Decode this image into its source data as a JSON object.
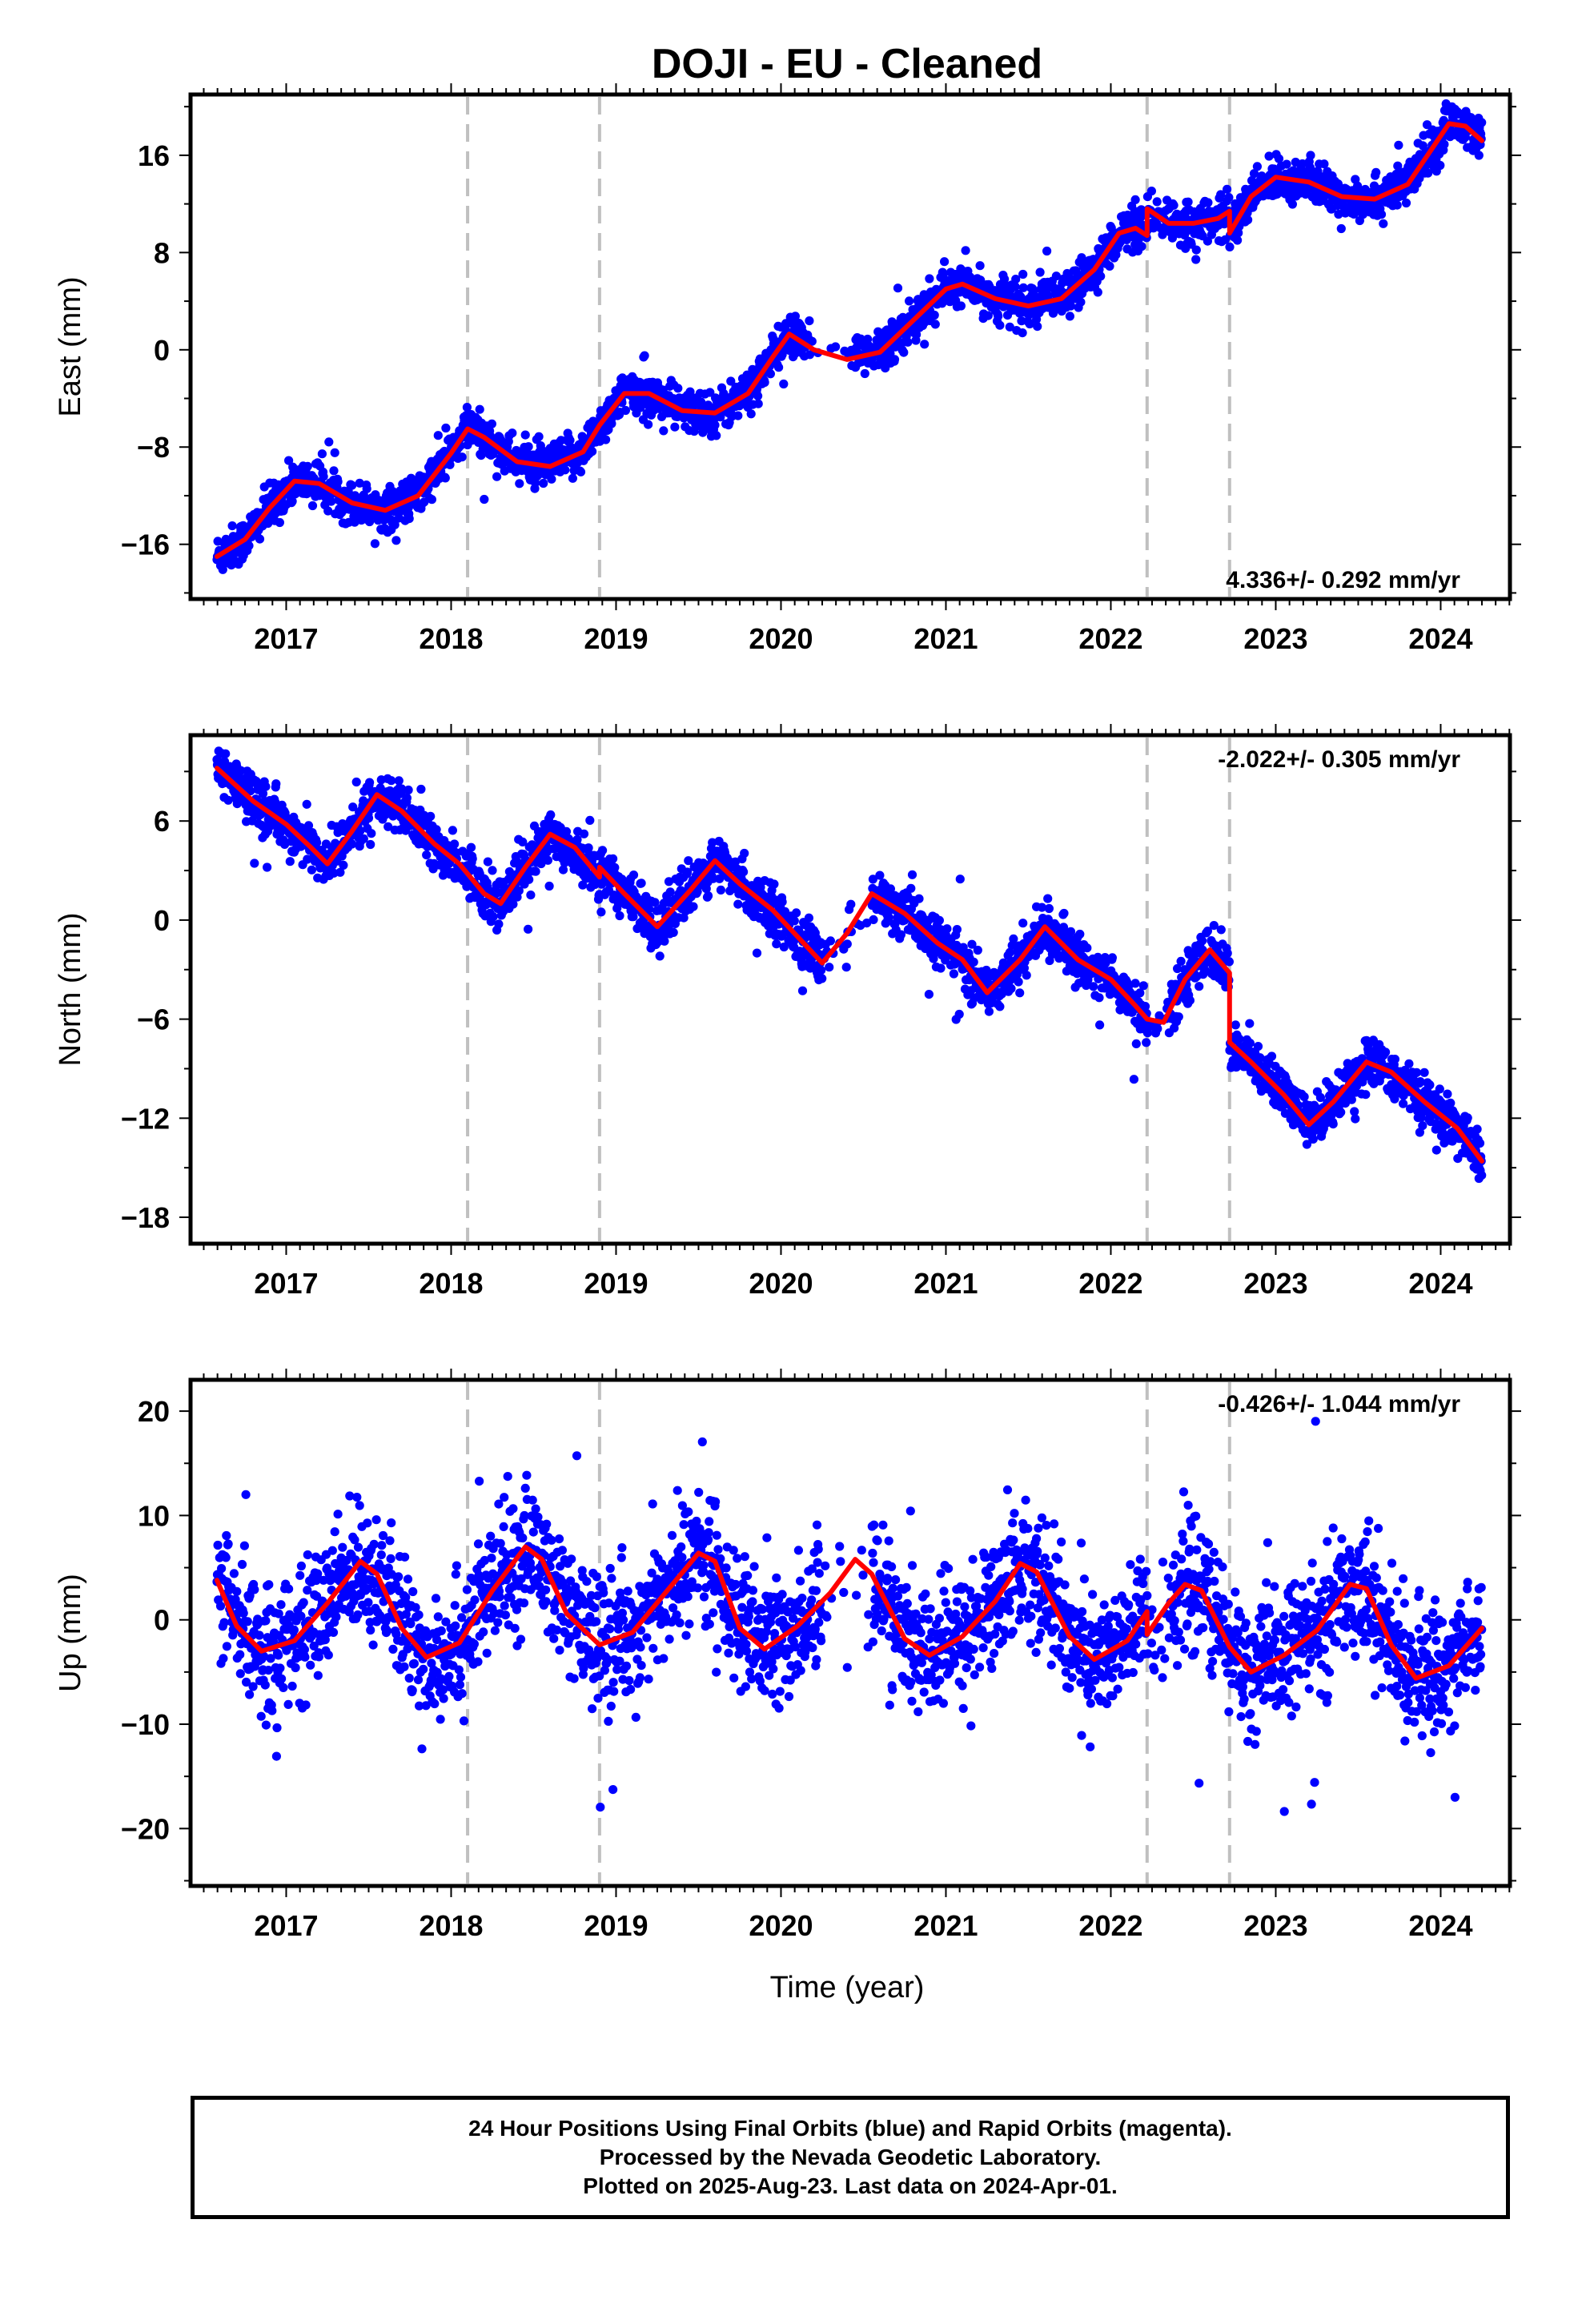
{
  "title": "DOJI  - EU - Cleaned",
  "x_axis_label": "Time (year)",
  "footer": {
    "line1": "24 Hour Positions Using Final Orbits (blue) and Rapid Orbits (magenta).",
    "line2": "Processed by the Nevada Geodetic Laboratory.",
    "line3": "Plotted on 2025-Aug-23. Last data on 2024-Apr-01."
  },
  "colors": {
    "final_orbits": "#0000ff",
    "rapid_orbits": "#ff00ff",
    "model": "#ff0000",
    "event_lines": "#c0c0c0"
  },
  "chart_data": [
    {
      "type": "scatter",
      "name": "east",
      "ylabel": "East (mm)",
      "xlabel": "",
      "xlim": [
        2016.42,
        2024.42
      ],
      "ylim": [
        -20.5,
        21
      ],
      "yticks": [
        -16,
        -8,
        0,
        8,
        16
      ],
      "xticks": [
        2017,
        2018,
        2019,
        2020,
        2021,
        2022,
        2023,
        2024
      ],
      "grid": false,
      "annotation": "4.336+/- 0.292 mm/yr",
      "annotation_position": "bottom-right",
      "event_lines": [
        2018.1,
        2018.9,
        2022.22,
        2022.72
      ],
      "rate_mm_per_yr": 4.336,
      "data_span": [
        2016.58,
        2024.25
      ],
      "model_points": [
        [
          2016.58,
          -17.0
        ],
        [
          2016.75,
          -15.6
        ],
        [
          2016.9,
          -13.0
        ],
        [
          2017.05,
          -10.8
        ],
        [
          2017.2,
          -11.0
        ],
        [
          2017.4,
          -12.6
        ],
        [
          2017.6,
          -13.2
        ],
        [
          2017.8,
          -12.0
        ],
        [
          2018.0,
          -8.5
        ],
        [
          2018.1,
          -6.5
        ],
        [
          2018.2,
          -7.2
        ],
        [
          2018.4,
          -9.2
        ],
        [
          2018.6,
          -9.6
        ],
        [
          2018.8,
          -8.4
        ],
        [
          2018.9,
          -6.2
        ],
        [
          2019.05,
          -3.6
        ],
        [
          2019.2,
          -3.6
        ],
        [
          2019.4,
          -5.0
        ],
        [
          2019.6,
          -5.2
        ],
        [
          2019.8,
          -3.6
        ],
        [
          2019.95,
          -0.6
        ],
        [
          2020.05,
          1.3
        ],
        [
          2020.2,
          0.0
        ],
        [
          2020.4,
          -0.8
        ],
        [
          2020.6,
          -0.2
        ],
        [
          2020.8,
          2.4
        ],
        [
          2021.0,
          5.0
        ],
        [
          2021.1,
          5.4
        ],
        [
          2021.3,
          4.2
        ],
        [
          2021.5,
          3.6
        ],
        [
          2021.7,
          4.2
        ],
        [
          2021.9,
          6.6
        ],
        [
          2022.05,
          9.6
        ],
        [
          2022.15,
          10.0
        ],
        [
          2022.22,
          9.4
        ],
        [
          2022.22,
          11.6
        ],
        [
          2022.35,
          10.4
        ],
        [
          2022.5,
          10.4
        ],
        [
          2022.65,
          10.8
        ],
        [
          2022.72,
          11.4
        ],
        [
          2022.72,
          9.6
        ],
        [
          2022.85,
          12.6
        ],
        [
          2023.0,
          14.2
        ],
        [
          2023.2,
          13.8
        ],
        [
          2023.4,
          12.6
        ],
        [
          2023.6,
          12.4
        ],
        [
          2023.8,
          13.6
        ],
        [
          2023.95,
          16.6
        ],
        [
          2024.05,
          18.6
        ],
        [
          2024.15,
          18.4
        ],
        [
          2024.25,
          17.2
        ]
      ],
      "noise_mm": 1.2
    },
    {
      "type": "scatter",
      "name": "north",
      "ylabel": "North (mm)",
      "xlabel": "",
      "xlim": [
        2016.42,
        2024.42
      ],
      "ylim": [
        -19.6,
        11.2
      ],
      "yticks": [
        -18,
        -12,
        -6,
        0,
        6
      ],
      "xticks": [
        2017,
        2018,
        2019,
        2020,
        2021,
        2022,
        2023,
        2024
      ],
      "grid": false,
      "annotation": "-2.022+/- 0.305 mm/yr",
      "annotation_position": "top-right",
      "event_lines": [
        2018.1,
        2018.9,
        2022.22,
        2022.72
      ],
      "rate_mm_per_yr": -2.022,
      "data_span": [
        2016.58,
        2024.25
      ],
      "model_points": [
        [
          2016.58,
          9.2
        ],
        [
          2016.8,
          7.2
        ],
        [
          2017.0,
          5.8
        ],
        [
          2017.15,
          4.4
        ],
        [
          2017.25,
          3.4
        ],
        [
          2017.4,
          5.4
        ],
        [
          2017.55,
          7.6
        ],
        [
          2017.7,
          6.6
        ],
        [
          2017.9,
          4.6
        ],
        [
          2018.05,
          3.4
        ],
        [
          2018.2,
          1.6
        ],
        [
          2018.3,
          1.0
        ],
        [
          2018.45,
          3.2
        ],
        [
          2018.6,
          5.2
        ],
        [
          2018.75,
          4.4
        ],
        [
          2018.9,
          2.6
        ],
        [
          2018.9,
          3.2
        ],
        [
          2019.05,
          1.6
        ],
        [
          2019.25,
          -0.4
        ],
        [
          2019.45,
          1.8
        ],
        [
          2019.6,
          3.6
        ],
        [
          2019.75,
          2.2
        ],
        [
          2019.95,
          0.6
        ],
        [
          2020.1,
          -1.0
        ],
        [
          2020.25,
          -2.6
        ],
        [
          2020.4,
          -0.8
        ],
        [
          2020.55,
          1.6
        ],
        [
          2020.75,
          0.4
        ],
        [
          2020.95,
          -1.4
        ],
        [
          2021.1,
          -2.4
        ],
        [
          2021.25,
          -4.4
        ],
        [
          2021.45,
          -2.4
        ],
        [
          2021.6,
          -0.4
        ],
        [
          2021.8,
          -2.4
        ],
        [
          2022.0,
          -3.6
        ],
        [
          2022.15,
          -5.2
        ],
        [
          2022.22,
          -6.0
        ],
        [
          2022.32,
          -6.2
        ],
        [
          2022.45,
          -3.6
        ],
        [
          2022.6,
          -1.8
        ],
        [
          2022.72,
          -3.2
        ],
        [
          2022.72,
          -7.4
        ],
        [
          2022.85,
          -8.6
        ],
        [
          2023.05,
          -10.6
        ],
        [
          2023.2,
          -12.4
        ],
        [
          2023.35,
          -11.0
        ],
        [
          2023.55,
          -8.6
        ],
        [
          2023.7,
          -9.2
        ],
        [
          2023.9,
          -11.0
        ],
        [
          2024.1,
          -12.6
        ],
        [
          2024.25,
          -14.6
        ]
      ],
      "noise_mm": 1.0
    },
    {
      "type": "scatter",
      "name": "up",
      "ylabel": "Up (mm)",
      "xlabel": "Time (year)",
      "xlim": [
        2016.42,
        2024.42
      ],
      "ylim": [
        -25.5,
        23
      ],
      "yticks": [
        -20,
        -10,
        0,
        10,
        20
      ],
      "xticks": [
        2017,
        2018,
        2019,
        2020,
        2021,
        2022,
        2023,
        2024
      ],
      "grid": false,
      "annotation": "-0.426+/- 1.044 mm/yr",
      "annotation_position": "top-right",
      "event_lines": [
        2018.1,
        2018.9,
        2022.22,
        2022.72
      ],
      "rate_mm_per_yr": -0.426,
      "data_span": [
        2016.58,
        2024.25
      ],
      "model_points": [
        [
          2016.58,
          3.8
        ],
        [
          2016.7,
          -0.6
        ],
        [
          2016.85,
          -3.0
        ],
        [
          2017.05,
          -2.0
        ],
        [
          2017.25,
          1.6
        ],
        [
          2017.45,
          5.6
        ],
        [
          2017.55,
          4.4
        ],
        [
          2017.7,
          -0.8
        ],
        [
          2017.85,
          -3.6
        ],
        [
          2018.05,
          -2.2
        ],
        [
          2018.25,
          2.8
        ],
        [
          2018.45,
          7.0
        ],
        [
          2018.55,
          5.8
        ],
        [
          2018.7,
          0.6
        ],
        [
          2018.9,
          -2.4
        ],
        [
          2019.1,
          -1.2
        ],
        [
          2019.3,
          2.6
        ],
        [
          2019.5,
          6.4
        ],
        [
          2019.6,
          5.6
        ],
        [
          2019.75,
          -0.8
        ],
        [
          2019.9,
          -2.8
        ],
        [
          2020.1,
          -0.6
        ],
        [
          2020.3,
          2.6
        ],
        [
          2020.45,
          5.8
        ],
        [
          2020.55,
          4.4
        ],
        [
          2020.75,
          -1.8
        ],
        [
          2020.9,
          -3.4
        ],
        [
          2021.1,
          -1.6
        ],
        [
          2021.3,
          1.8
        ],
        [
          2021.45,
          5.4
        ],
        [
          2021.55,
          4.6
        ],
        [
          2021.75,
          -1.6
        ],
        [
          2021.9,
          -3.8
        ],
        [
          2022.1,
          -2.0
        ],
        [
          2022.22,
          0.8
        ],
        [
          2022.22,
          -1.4
        ],
        [
          2022.35,
          1.6
        ],
        [
          2022.45,
          3.4
        ],
        [
          2022.55,
          2.8
        ],
        [
          2022.72,
          -2.6
        ],
        [
          2022.85,
          -5.0
        ],
        [
          2023.05,
          -3.4
        ],
        [
          2023.25,
          -1.0
        ],
        [
          2023.45,
          3.4
        ],
        [
          2023.55,
          3.0
        ],
        [
          2023.7,
          -2.4
        ],
        [
          2023.85,
          -5.6
        ],
        [
          2024.05,
          -4.4
        ],
        [
          2024.25,
          -0.8
        ]
      ],
      "noise_mm": 4.2
    }
  ]
}
